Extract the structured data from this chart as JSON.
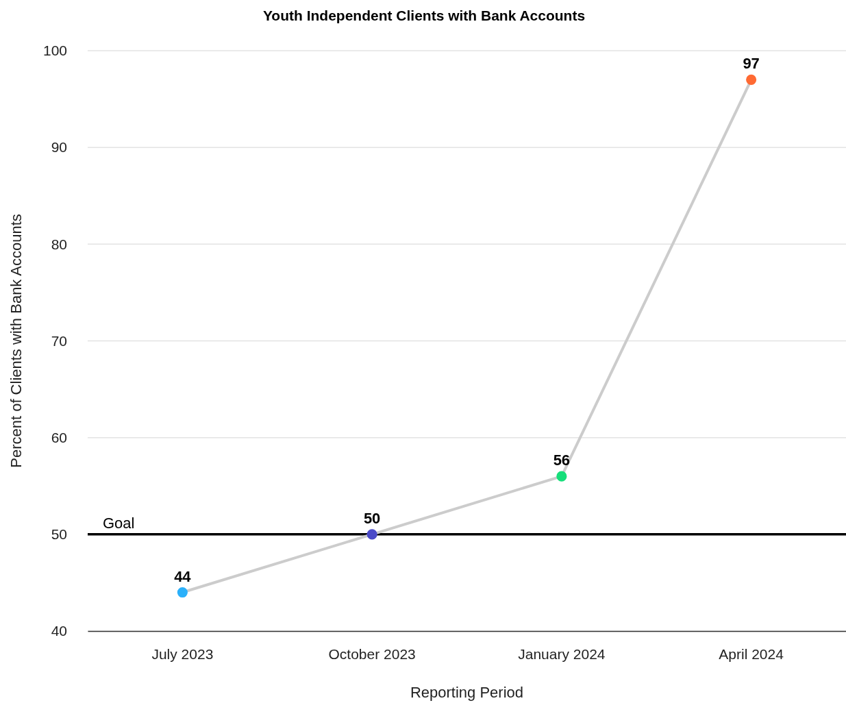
{
  "chart_data": {
    "type": "line",
    "title": "Youth Independent Clients with Bank Accounts",
    "xlabel": "Reporting Period",
    "ylabel": "Percent of Clients with Bank Accounts",
    "categories": [
      "July 2023",
      "October 2023",
      "January 2024",
      "April 2024"
    ],
    "series": [
      {
        "color": "#cccccc",
        "colors": [
          "#2bb0fa",
          "#4a4ac8",
          "#16de7a",
          "#ff6a33"
        ],
        "values": [
          44,
          50,
          56,
          97
        ]
      }
    ],
    "ylim": [
      40,
      100
    ],
    "yticks": [
      40,
      50,
      60,
      70,
      80,
      90,
      100
    ],
    "grid": "y",
    "marker": "circle",
    "line_style": "solid",
    "data_labels": true,
    "ref_lines": [
      {
        "axis": "y",
        "value": 50,
        "label": "Goal",
        "color": "#000000"
      }
    ]
  }
}
